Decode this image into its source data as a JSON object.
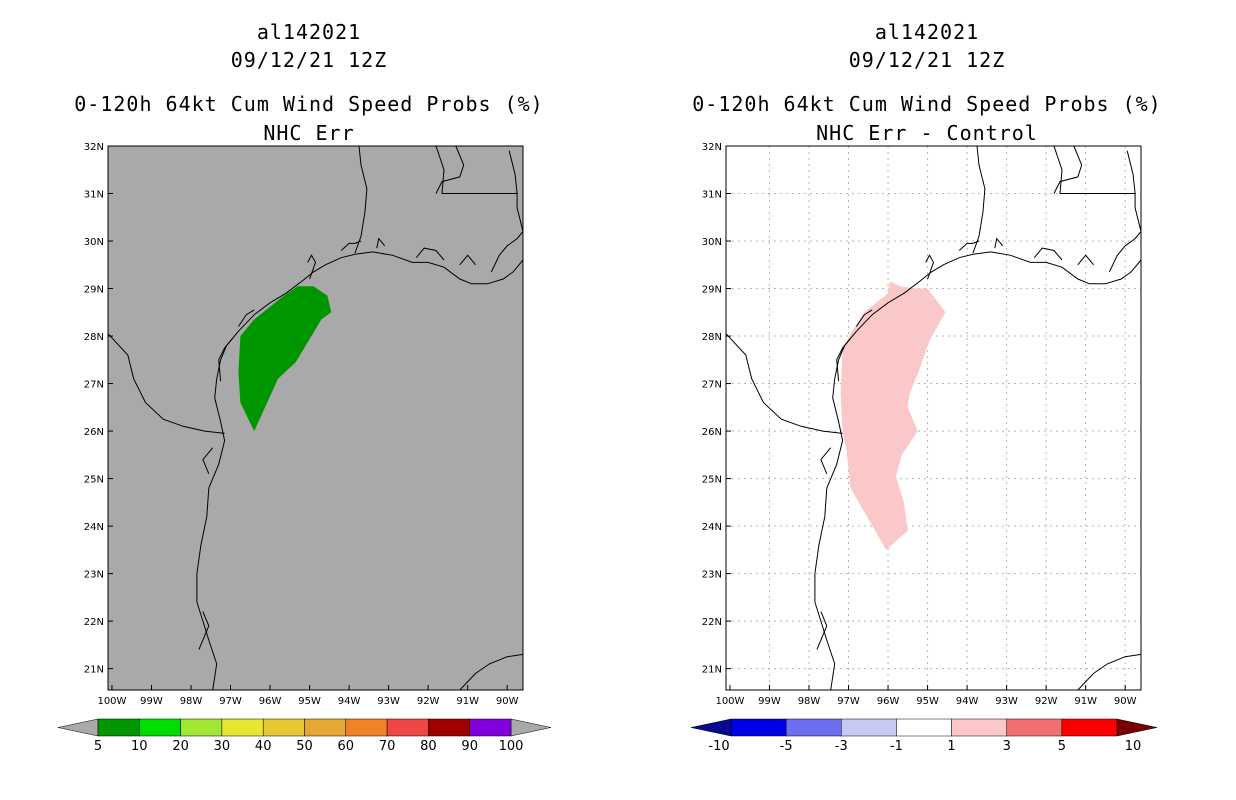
{
  "left": {
    "title_storm": "al142021",
    "title_time": "09/12/21 12Z",
    "title_product": "0-120h 64kt Cum Wind Speed Probs (%)",
    "title_field": "NHC Err",
    "background_color": "#a9a9a9",
    "lat_labels": [
      "32N",
      "31N",
      "30N",
      "29N",
      "28N",
      "27N",
      "26N",
      "25N",
      "24N",
      "23N",
      "22N",
      "21N"
    ],
    "lon_labels": [
      "100W",
      "99W",
      "98W",
      "97W",
      "96W",
      "95W",
      "94W",
      "93W",
      "92W",
      "91W",
      "90W"
    ],
    "colorbar": {
      "labels": [
        "5",
        "10",
        "20",
        "30",
        "40",
        "50",
        "60",
        "70",
        "80",
        "90",
        "100"
      ],
      "colors": [
        "#009600",
        "#00dc00",
        "#a0e632",
        "#e6e632",
        "#e6c832",
        "#e6a832",
        "#f08228",
        "#f04646",
        "#a00000",
        "#8200dc"
      ],
      "end_color": "#a9a9a9"
    },
    "shaded_region": {
      "value_range": "5-10",
      "color": "#009600",
      "outline_lonlat": [
        [
          -96.4,
          26.0
        ],
        [
          -96.75,
          26.6
        ],
        [
          -96.8,
          27.25
        ],
        [
          -96.75,
          28.0
        ],
        [
          -96.4,
          28.35
        ],
        [
          -95.65,
          28.85
        ],
        [
          -95.3,
          29.05
        ],
        [
          -94.9,
          29.05
        ],
        [
          -94.55,
          28.85
        ],
        [
          -94.45,
          28.5
        ],
        [
          -94.7,
          28.35
        ],
        [
          -94.95,
          28.0
        ],
        [
          -95.35,
          27.45
        ],
        [
          -95.8,
          27.1
        ]
      ]
    }
  },
  "right": {
    "title_storm": "al142021",
    "title_time": "09/12/21 12Z",
    "title_product": "0-120h 64kt Cum Wind Speed Probs (%)",
    "title_field": "NHC Err - Control",
    "background_color": "#ffffff",
    "lat_labels": [
      "32N",
      "31N",
      "30N",
      "29N",
      "28N",
      "27N",
      "26N",
      "25N",
      "24N",
      "23N",
      "22N",
      "21N"
    ],
    "lon_labels": [
      "100W",
      "99W",
      "98W",
      "97W",
      "96W",
      "95W",
      "94W",
      "93W",
      "92W",
      "91W",
      "90W"
    ],
    "colorbar": {
      "labels": [
        "-10",
        "-5",
        "-3",
        "-1",
        "1",
        "3",
        "5",
        "10"
      ],
      "colors": [
        "#0000e6",
        "#6e6ef0",
        "#c8c8f5",
        "#ffffff",
        "#fac8c8",
        "#f07070",
        "#fa0000"
      ],
      "start_color": "#0a0a8c",
      "end_color": "#780000"
    },
    "shaded_region": {
      "value_range": "1-3",
      "color": "#fac8c8",
      "outline_lonlat": [
        [
          -96.05,
          23.5
        ],
        [
          -96.95,
          24.8
        ],
        [
          -97.05,
          25.6
        ],
        [
          -97.15,
          26.0
        ],
        [
          -97.2,
          26.8
        ],
        [
          -97.15,
          27.7
        ],
        [
          -96.95,
          28.05
        ],
        [
          -96.6,
          28.5
        ],
        [
          -96.0,
          28.9
        ],
        [
          -95.95,
          29.15
        ],
        [
          -95.7,
          29.05
        ],
        [
          -95.3,
          29.0
        ],
        [
          -95.0,
          29.0
        ],
        [
          -94.55,
          28.5
        ],
        [
          -94.95,
          27.9
        ],
        [
          -95.25,
          27.2
        ],
        [
          -95.45,
          26.8
        ],
        [
          -95.5,
          26.5
        ],
        [
          -95.25,
          26.0
        ],
        [
          -95.65,
          25.5
        ],
        [
          -95.8,
          25.05
        ],
        [
          -95.6,
          24.5
        ],
        [
          -95.5,
          23.9
        ]
      ]
    }
  }
}
